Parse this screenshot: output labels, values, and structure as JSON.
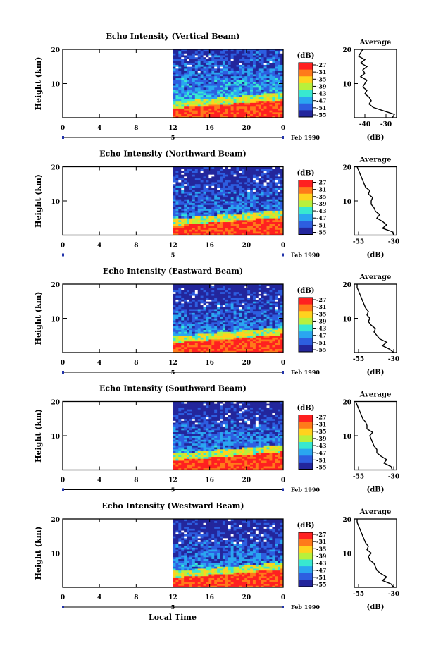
{
  "figure": {
    "xlabel": "Local Time",
    "colorbar_unit": "(dB)",
    "colorbar_ticks": [
      "-27",
      "-31",
      "-35",
      "-39",
      "-43",
      "-47",
      "-51",
      "-55"
    ],
    "colorbar_colors": [
      "#ff2020",
      "#ff7a1a",
      "#ffd21e",
      "#b8f03c",
      "#38e8d0",
      "#2aa6f0",
      "#2d5ee0",
      "#23269c"
    ]
  },
  "chart_data": [
    {
      "type": "heatmap",
      "title": "Echo Intensity (Vertical Beam)",
      "ylabel": "Height (km)",
      "x_ticks": [
        "0",
        "4",
        "8",
        "12",
        "16",
        "20",
        "0"
      ],
      "y_ticks": [
        "20",
        "10"
      ],
      "ylim": [
        0,
        20
      ],
      "date_marker": "5",
      "date_label": "Feb 1990",
      "data_start_hour": 12,
      "profile": {
        "title": "Average",
        "xlabel": "(dB)",
        "x_ticks": [
          "-40",
          "-30"
        ],
        "xlim": [
          -45,
          -25
        ],
        "height_km": [
          0,
          1,
          2,
          3,
          4,
          5,
          6,
          7,
          8,
          9,
          10,
          11,
          12,
          13,
          14,
          15,
          16,
          17,
          18,
          19,
          20
        ],
        "db": [
          -27,
          -26,
          -31,
          -36,
          -38,
          -37,
          -38,
          -40,
          -39,
          -41,
          -40,
          -39,
          -42,
          -40,
          -41,
          -39,
          -42,
          -40,
          -43,
          -42,
          -41
        ]
      }
    },
    {
      "type": "heatmap",
      "title": "Echo Intensity (Northward Beam)",
      "ylabel": "Height (km)",
      "x_ticks": [
        "0",
        "4",
        "8",
        "12",
        "16",
        "20",
        "0"
      ],
      "y_ticks": [
        "20",
        "10"
      ],
      "ylim": [
        0,
        20
      ],
      "date_marker": "5",
      "date_label": "Feb 1990",
      "data_start_hour": 12,
      "profile": {
        "title": "Average",
        "xlabel": "(dB)",
        "x_ticks": [
          "-55",
          "-30"
        ],
        "xlim": [
          -58,
          -28
        ],
        "height_km": [
          0,
          1,
          2,
          3,
          4,
          5,
          6,
          7,
          8,
          9,
          10,
          11,
          12,
          13,
          14,
          15,
          16,
          17,
          18,
          19,
          20
        ],
        "db": [
          -30,
          -31,
          -38,
          -35,
          -38,
          -42,
          -40,
          -43,
          -44,
          -46,
          -46,
          -45,
          -48,
          -47,
          -50,
          -51,
          -52,
          -53,
          -54,
          -55,
          -56
        ]
      }
    },
    {
      "type": "heatmap",
      "title": "Echo Intensity (Eastward Beam)",
      "ylabel": "Height (km)",
      "x_ticks": [
        "0",
        "4",
        "8",
        "12",
        "16",
        "20",
        "0"
      ],
      "y_ticks": [
        "20",
        "10"
      ],
      "ylim": [
        0,
        20
      ],
      "date_marker": "5",
      "date_label": "Feb 1990",
      "data_start_hour": 12,
      "profile": {
        "title": "Average",
        "xlabel": "(dB)",
        "x_ticks": [
          "-55",
          "-30"
        ],
        "xlim": [
          -58,
          -28
        ],
        "height_km": [
          0,
          1,
          2,
          3,
          4,
          5,
          6,
          7,
          8,
          9,
          10,
          11,
          12,
          13,
          14,
          15,
          16,
          17,
          18,
          19,
          20
        ],
        "db": [
          -30,
          -33,
          -38,
          -35,
          -40,
          -42,
          -44,
          -43,
          -46,
          -48,
          -47,
          -49,
          -48,
          -50,
          -51,
          -52,
          -53,
          -54,
          -55,
          -56,
          -56
        ]
      }
    },
    {
      "type": "heatmap",
      "title": "Echo Intensity (Southward Beam)",
      "ylabel": "Height (km)",
      "x_ticks": [
        "0",
        "4",
        "8",
        "12",
        "16",
        "20",
        "0"
      ],
      "y_ticks": [
        "20",
        "10"
      ],
      "ylim": [
        0,
        20
      ],
      "date_marker": "5",
      "date_label": "Feb 1990",
      "data_start_hour": 12,
      "profile": {
        "title": "Average",
        "xlabel": "(dB)",
        "x_ticks": [
          "-55",
          "-30"
        ],
        "xlim": [
          -58,
          -28
        ],
        "height_km": [
          0,
          1,
          2,
          3,
          4,
          5,
          6,
          7,
          8,
          9,
          10,
          11,
          12,
          13,
          14,
          15,
          16,
          17,
          18,
          19,
          20
        ],
        "db": [
          -31,
          -32,
          -37,
          -35,
          -39,
          -42,
          -42,
          -44,
          -45,
          -46,
          -47,
          -45,
          -49,
          -49,
          -50,
          -52,
          -53,
          -54,
          -55,
          -56,
          -57
        ]
      }
    },
    {
      "type": "heatmap",
      "title": "Echo Intensity (Westward Beam)",
      "ylabel": "Height (km)",
      "x_ticks": [
        "0",
        "4",
        "8",
        "12",
        "16",
        "20",
        "0"
      ],
      "y_ticks": [
        "20",
        "10"
      ],
      "ylim": [
        0,
        20
      ],
      "date_marker": "5",
      "date_label": "Feb 1990",
      "data_start_hour": 12,
      "profile": {
        "title": "Average",
        "xlabel": "(dB)",
        "x_ticks": [
          "-55",
          "-30"
        ],
        "xlim": [
          -58,
          -28
        ],
        "height_km": [
          0,
          1,
          2,
          3,
          4,
          5,
          6,
          7,
          8,
          9,
          10,
          11,
          12,
          13,
          14,
          15,
          16,
          17,
          18,
          19,
          20
        ],
        "db": [
          -30,
          -32,
          -38,
          -35,
          -39,
          -42,
          -43,
          -44,
          -47,
          -48,
          -46,
          -49,
          -48,
          -50,
          -51,
          -52,
          -53,
          -54,
          -55,
          -56,
          -56
        ]
      }
    }
  ]
}
